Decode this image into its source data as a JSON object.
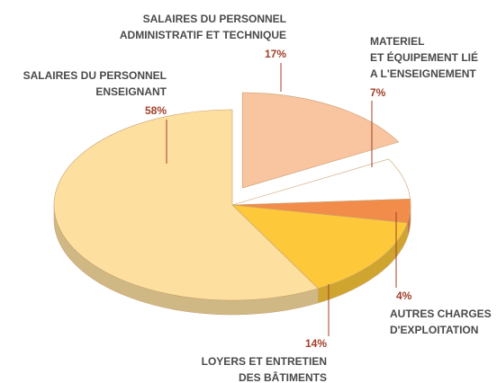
{
  "chart_data": {
    "type": "pie3d",
    "categories": [
      [
        "SALAIRES DU PERSONNEL",
        "ADMINISTRATIF ET TECHNIQUE"
      ],
      [
        "MATERIEL",
        "ET ÉQUIPEMENT LIÉ",
        "A L'ENSEIGNEMENT"
      ],
      [
        "AUTRES CHARGES",
        "D'EXPLOITATION"
      ],
      [
        "LOYERS ET ENTRETIEN",
        "DES BÂTIMENTS"
      ],
      [
        "SALAIRES DU PERSONNEL",
        "ENSEIGNANT"
      ]
    ],
    "values": [
      17,
      7,
      4,
      14,
      58
    ],
    "value_labels": [
      "17%",
      "7%",
      "4%",
      "14%",
      "58%"
    ],
    "colors": [
      "#f9c4a0",
      "#ffffff",
      "#f28c4a",
      "#fdc93a",
      "#fde0a0"
    ],
    "exploded": [
      true,
      false,
      false,
      false,
      false
    ]
  }
}
